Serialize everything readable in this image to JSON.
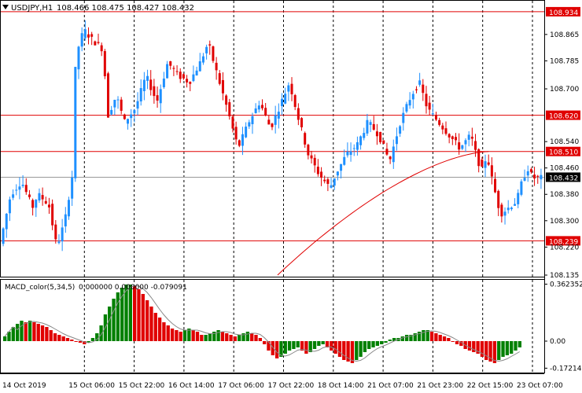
{
  "header": {
    "symbol": "USDJPY,H1",
    "ohlc": "108.466 108.475 108.427 108.432",
    "menu_icon": "triangle-down-icon"
  },
  "indicator": {
    "label": "MACD_color(5,34,5)",
    "values": "0.000000 0.000000 -0.079091"
  },
  "colors": {
    "bull": "#1E90FF",
    "bear": "#E00000",
    "level": "#E00000",
    "macd_up": "#008000",
    "macd_down": "#E00000"
  },
  "chart_data": [
    {
      "type": "candlestick",
      "title": "USDJPY,H1",
      "y_ticks": [
        "108.934",
        "108.865",
        "108.785",
        "108.700",
        "108.620",
        "108.540",
        "108.510",
        "108.460",
        "108.432",
        "108.380",
        "108.300",
        "108.239",
        "108.220",
        "108.135"
      ],
      "ylim": [
        108.135,
        108.96
      ],
      "x_ticks": [
        "14 Oct 2019",
        "15 Oct 06:00",
        "15 Oct 22:00",
        "16 Oct 14:00",
        "17 Oct 06:00",
        "17 Oct 22:00",
        "18 Oct 14:00",
        "21 Oct 07:00",
        "21 Oct 23:00",
        "22 Oct 15:00",
        "23 Oct 07:00"
      ],
      "horizontal_levels": [
        {
          "label": "108.934",
          "value": 108.934
        },
        {
          "label": "108.620",
          "value": 108.62
        },
        {
          "label": "108.510",
          "value": 108.51
        },
        {
          "label": "108.239",
          "value": 108.239
        }
      ],
      "current_price": {
        "label": "108.432",
        "value": 108.432
      },
      "moving_average": {
        "start": [
          0.51,
          108.135
        ],
        "end": [
          0.9,
          108.51
        ]
      },
      "price_path": [
        [
          0.0,
          108.23
        ],
        [
          0.02,
          108.38
        ],
        [
          0.04,
          108.42
        ],
        [
          0.06,
          108.34
        ],
        [
          0.07,
          108.38
        ],
        [
          0.09,
          108.35
        ],
        [
          0.105,
          108.22
        ],
        [
          0.12,
          108.3
        ],
        [
          0.135,
          108.45
        ],
        [
          0.14,
          108.8
        ],
        [
          0.155,
          108.88
        ],
        [
          0.17,
          108.85
        ],
        [
          0.19,
          108.82
        ],
        [
          0.2,
          108.62
        ],
        [
          0.215,
          108.68
        ],
        [
          0.23,
          108.6
        ],
        [
          0.25,
          108.64
        ],
        [
          0.27,
          108.74
        ],
        [
          0.29,
          108.66
        ],
        [
          0.31,
          108.78
        ],
        [
          0.33,
          108.74
        ],
        [
          0.35,
          108.72
        ],
        [
          0.37,
          108.78
        ],
        [
          0.385,
          108.84
        ],
        [
          0.395,
          108.78
        ],
        [
          0.42,
          108.64
        ],
        [
          0.44,
          108.52
        ],
        [
          0.46,
          108.6
        ],
        [
          0.48,
          108.66
        ],
        [
          0.5,
          108.58
        ],
        [
          0.52,
          108.66
        ],
        [
          0.535,
          108.72
        ],
        [
          0.55,
          108.62
        ],
        [
          0.57,
          108.5
        ],
        [
          0.59,
          108.44
        ],
        [
          0.61,
          108.4
        ],
        [
          0.62,
          108.44
        ],
        [
          0.64,
          108.5
        ],
        [
          0.66,
          108.53
        ],
        [
          0.68,
          108.6
        ],
        [
          0.7,
          108.56
        ],
        [
          0.72,
          108.48
        ],
        [
          0.74,
          108.6
        ],
        [
          0.76,
          108.68
        ],
        [
          0.775,
          108.72
        ],
        [
          0.79,
          108.64
        ],
        [
          0.81,
          108.6
        ],
        [
          0.83,
          108.56
        ],
        [
          0.85,
          108.52
        ],
        [
          0.87,
          108.56
        ],
        [
          0.88,
          108.5
        ],
        [
          0.89,
          108.45
        ],
        [
          0.9,
          108.5
        ],
        [
          0.91,
          108.42
        ],
        [
          0.925,
          108.32
        ],
        [
          0.94,
          108.34
        ],
        [
          0.955,
          108.36
        ],
        [
          0.965,
          108.42
        ],
        [
          0.975,
          108.46
        ],
        [
          0.985,
          108.43
        ]
      ]
    },
    {
      "type": "histogram",
      "title": "MACD_color(5,34,5)",
      "y_ticks": [
        "0.362352",
        "0.00",
        "-0.172145"
      ],
      "ylim": [
        -0.19,
        0.38
      ],
      "values": [
        0.03,
        0.06,
        0.09,
        0.11,
        0.13,
        0.12,
        0.13,
        0.12,
        0.11,
        0.1,
        0.09,
        0.07,
        0.05,
        0.04,
        0.03,
        0.02,
        0.01,
        0.0,
        -0.01,
        -0.02,
        -0.01,
        0.02,
        0.05,
        0.1,
        0.17,
        0.22,
        0.27,
        0.31,
        0.34,
        0.36,
        0.36,
        0.35,
        0.33,
        0.3,
        0.26,
        0.22,
        0.18,
        0.15,
        0.12,
        0.1,
        0.08,
        0.07,
        0.06,
        0.07,
        0.08,
        0.07,
        0.06,
        0.04,
        0.04,
        0.05,
        0.06,
        0.07,
        0.06,
        0.05,
        0.04,
        0.03,
        0.04,
        0.05,
        0.06,
        0.05,
        0.04,
        0.02,
        -0.02,
        -0.06,
        -0.09,
        -0.11,
        -0.1,
        -0.08,
        -0.06,
        -0.05,
        -0.04,
        -0.06,
        -0.08,
        -0.07,
        -0.05,
        -0.03,
        -0.02,
        -0.04,
        -0.06,
        -0.08,
        -0.1,
        -0.12,
        -0.13,
        -0.14,
        -0.12,
        -0.1,
        -0.07,
        -0.05,
        -0.04,
        -0.03,
        -0.02,
        -0.01,
        0.01,
        0.02,
        0.02,
        0.03,
        0.04,
        0.04,
        0.05,
        0.06,
        0.07,
        0.07,
        0.06,
        0.05,
        0.04,
        0.03,
        0.02,
        0.0,
        -0.02,
        -0.03,
        -0.05,
        -0.06,
        -0.07,
        -0.08,
        -0.1,
        -0.12,
        -0.13,
        -0.14,
        -0.12,
        -0.1,
        -0.09,
        -0.08,
        -0.06,
        -0.04
      ]
    }
  ]
}
